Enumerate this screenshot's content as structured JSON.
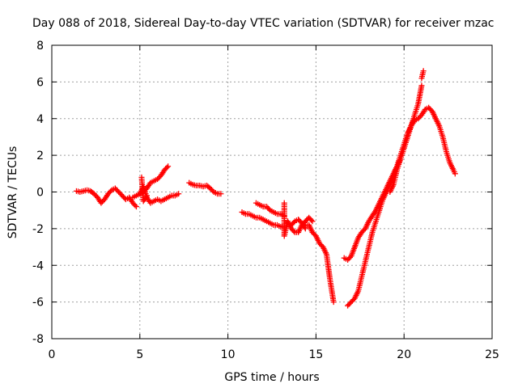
{
  "chart_data": {
    "type": "scatter",
    "title": "Day 088 of 2018, Sidereal Day-to-day VTEC variation (SDTVAR) for receiver mzac",
    "xlabel": "GPS time / hours",
    "ylabel": "SDTVAR / TECUs",
    "xlim": [
      0,
      25
    ],
    "ylim": [
      -8,
      8
    ],
    "xticks": [
      0,
      5,
      10,
      15,
      20,
      25
    ],
    "yticks": [
      -8,
      -6,
      -4,
      -2,
      0,
      2,
      4,
      6,
      8
    ],
    "grid": true,
    "marker": "+",
    "color": "#ff0000",
    "series": [
      {
        "name": "seg1",
        "x": [
          1.4,
          1.6,
          1.8,
          2.0,
          2.2,
          2.4,
          2.6,
          2.8,
          3.0,
          3.2,
          3.4,
          3.6,
          3.8,
          4.0,
          4.2,
          4.4,
          4.6,
          4.8
        ],
        "y": [
          0.05,
          0.0,
          0.05,
          0.1,
          0.05,
          -0.1,
          -0.3,
          -0.6,
          -0.4,
          -0.1,
          0.1,
          0.2,
          0.0,
          -0.2,
          -0.4,
          -0.3,
          -0.6,
          -0.8
        ]
      },
      {
        "name": "seg2",
        "x": [
          4.6,
          4.8,
          5.0,
          5.2,
          5.4,
          5.6,
          5.8,
          6.0,
          6.2,
          6.4,
          6.6
        ],
        "y": [
          -0.3,
          -0.2,
          -0.1,
          0.0,
          0.2,
          0.5,
          0.6,
          0.7,
          0.9,
          1.2,
          1.4
        ]
      },
      {
        "name": "seg3",
        "x": [
          5.0,
          5.2,
          5.4,
          5.6,
          5.8,
          6.0,
          6.2,
          6.4,
          6.6,
          6.8,
          7.0,
          7.2
        ],
        "y": [
          -0.1,
          0.3,
          -0.3,
          -0.6,
          -0.5,
          -0.4,
          -0.5,
          -0.4,
          -0.3,
          -0.2,
          -0.2,
          -0.1
        ]
      },
      {
        "name": "seg4",
        "x": [
          5.1,
          5.2,
          5.4
        ],
        "y": [
          0.8,
          -0.5,
          -0.2
        ]
      },
      {
        "name": "seg5",
        "x": [
          7.8,
          8.0,
          8.2,
          8.4,
          8.6,
          8.8,
          9.0,
          9.2,
          9.4,
          9.6
        ],
        "y": [
          0.5,
          0.4,
          0.35,
          0.35,
          0.3,
          0.35,
          0.2,
          0.0,
          -0.1,
          -0.1
        ]
      },
      {
        "name": "seg6",
        "x": [
          10.8,
          11.0,
          11.2,
          11.4,
          11.6,
          11.8,
          12.0,
          12.2,
          12.4,
          12.6,
          12.8,
          13.0,
          13.2
        ],
        "y": [
          -1.1,
          -1.2,
          -1.2,
          -1.3,
          -1.4,
          -1.4,
          -1.5,
          -1.6,
          -1.7,
          -1.8,
          -1.8,
          -1.9,
          -1.9
        ]
      },
      {
        "name": "seg7",
        "x": [
          11.6,
          11.8,
          12.0,
          12.2,
          12.4,
          12.6,
          12.8,
          13.0,
          13.2
        ],
        "y": [
          -0.6,
          -0.7,
          -0.8,
          -0.8,
          -1.0,
          -1.1,
          -1.2,
          -1.2,
          -1.3
        ]
      },
      {
        "name": "seg8",
        "x": [
          13.2,
          13.2,
          13.4,
          13.6,
          13.8,
          14.0,
          14.2,
          14.4,
          14.6,
          14.8
        ],
        "y": [
          -0.6,
          -2.4,
          -1.6,
          -2.0,
          -2.2,
          -2.2,
          -1.8,
          -1.6,
          -1.4,
          -1.6
        ]
      },
      {
        "name": "seg9",
        "x": [
          13.6,
          13.8,
          14.0,
          14.2,
          14.4
        ],
        "y": [
          -1.8,
          -1.6,
          -1.5,
          -1.7,
          -2.0
        ]
      },
      {
        "name": "seg10",
        "x": [
          14.4,
          14.6,
          14.8,
          15.0,
          15.2,
          15.4,
          15.6,
          15.8,
          16.0
        ],
        "y": [
          -1.8,
          -1.8,
          -2.2,
          -2.4,
          -2.8,
          -3.0,
          -3.4,
          -4.8,
          -6.0
        ]
      },
      {
        "name": "seg11",
        "x": [
          16.6,
          16.8,
          17.0,
          17.2,
          17.4,
          17.6,
          17.8,
          18.0,
          18.2,
          18.4,
          18.6,
          18.8,
          19.0,
          19.2,
          19.4,
          19.6,
          19.8,
          20.0,
          20.2,
          20.4,
          20.6,
          20.8,
          21.0
        ],
        "y": [
          -3.6,
          -3.7,
          -3.5,
          -3.0,
          -2.5,
          -2.2,
          -2.0,
          -1.6,
          -1.3,
          -1.0,
          -0.6,
          -0.2,
          0.2,
          0.6,
          1.0,
          1.4,
          1.8,
          2.4,
          3.0,
          3.6,
          4.2,
          4.8,
          5.8
        ]
      },
      {
        "name": "seg12",
        "x": [
          21.0,
          21.1
        ],
        "y": [
          6.2,
          6.6
        ]
      },
      {
        "name": "seg13",
        "x": [
          16.8,
          17.0,
          17.2,
          17.4,
          17.6,
          17.8,
          18.0,
          18.2,
          18.4,
          18.6,
          18.8,
          19.0,
          19.2,
          19.4,
          19.6,
          19.8,
          20.0,
          20.2,
          20.4,
          20.6,
          20.8,
          21.0,
          21.2,
          21.4,
          21.6,
          21.8,
          22.0,
          22.2,
          22.4,
          22.6,
          22.8,
          22.9
        ],
        "y": [
          -6.2,
          -6.0,
          -5.8,
          -5.4,
          -4.6,
          -3.8,
          -3.0,
          -2.2,
          -1.6,
          -1.0,
          -0.4,
          0.0,
          0.4,
          0.8,
          1.4,
          2.0,
          2.6,
          3.2,
          3.6,
          3.9,
          4.0,
          4.2,
          4.5,
          4.6,
          4.4,
          4.0,
          3.6,
          3.0,
          2.2,
          1.6,
          1.2,
          1.0
        ]
      },
      {
        "name": "seg14",
        "x": [
          19.2,
          19.4,
          19.6,
          19.8,
          20.0,
          20.2,
          20.4,
          20.6
        ],
        "y": [
          0.0,
          0.4,
          1.2,
          1.8,
          2.4,
          3.0,
          3.6,
          4.0
        ]
      }
    ]
  }
}
